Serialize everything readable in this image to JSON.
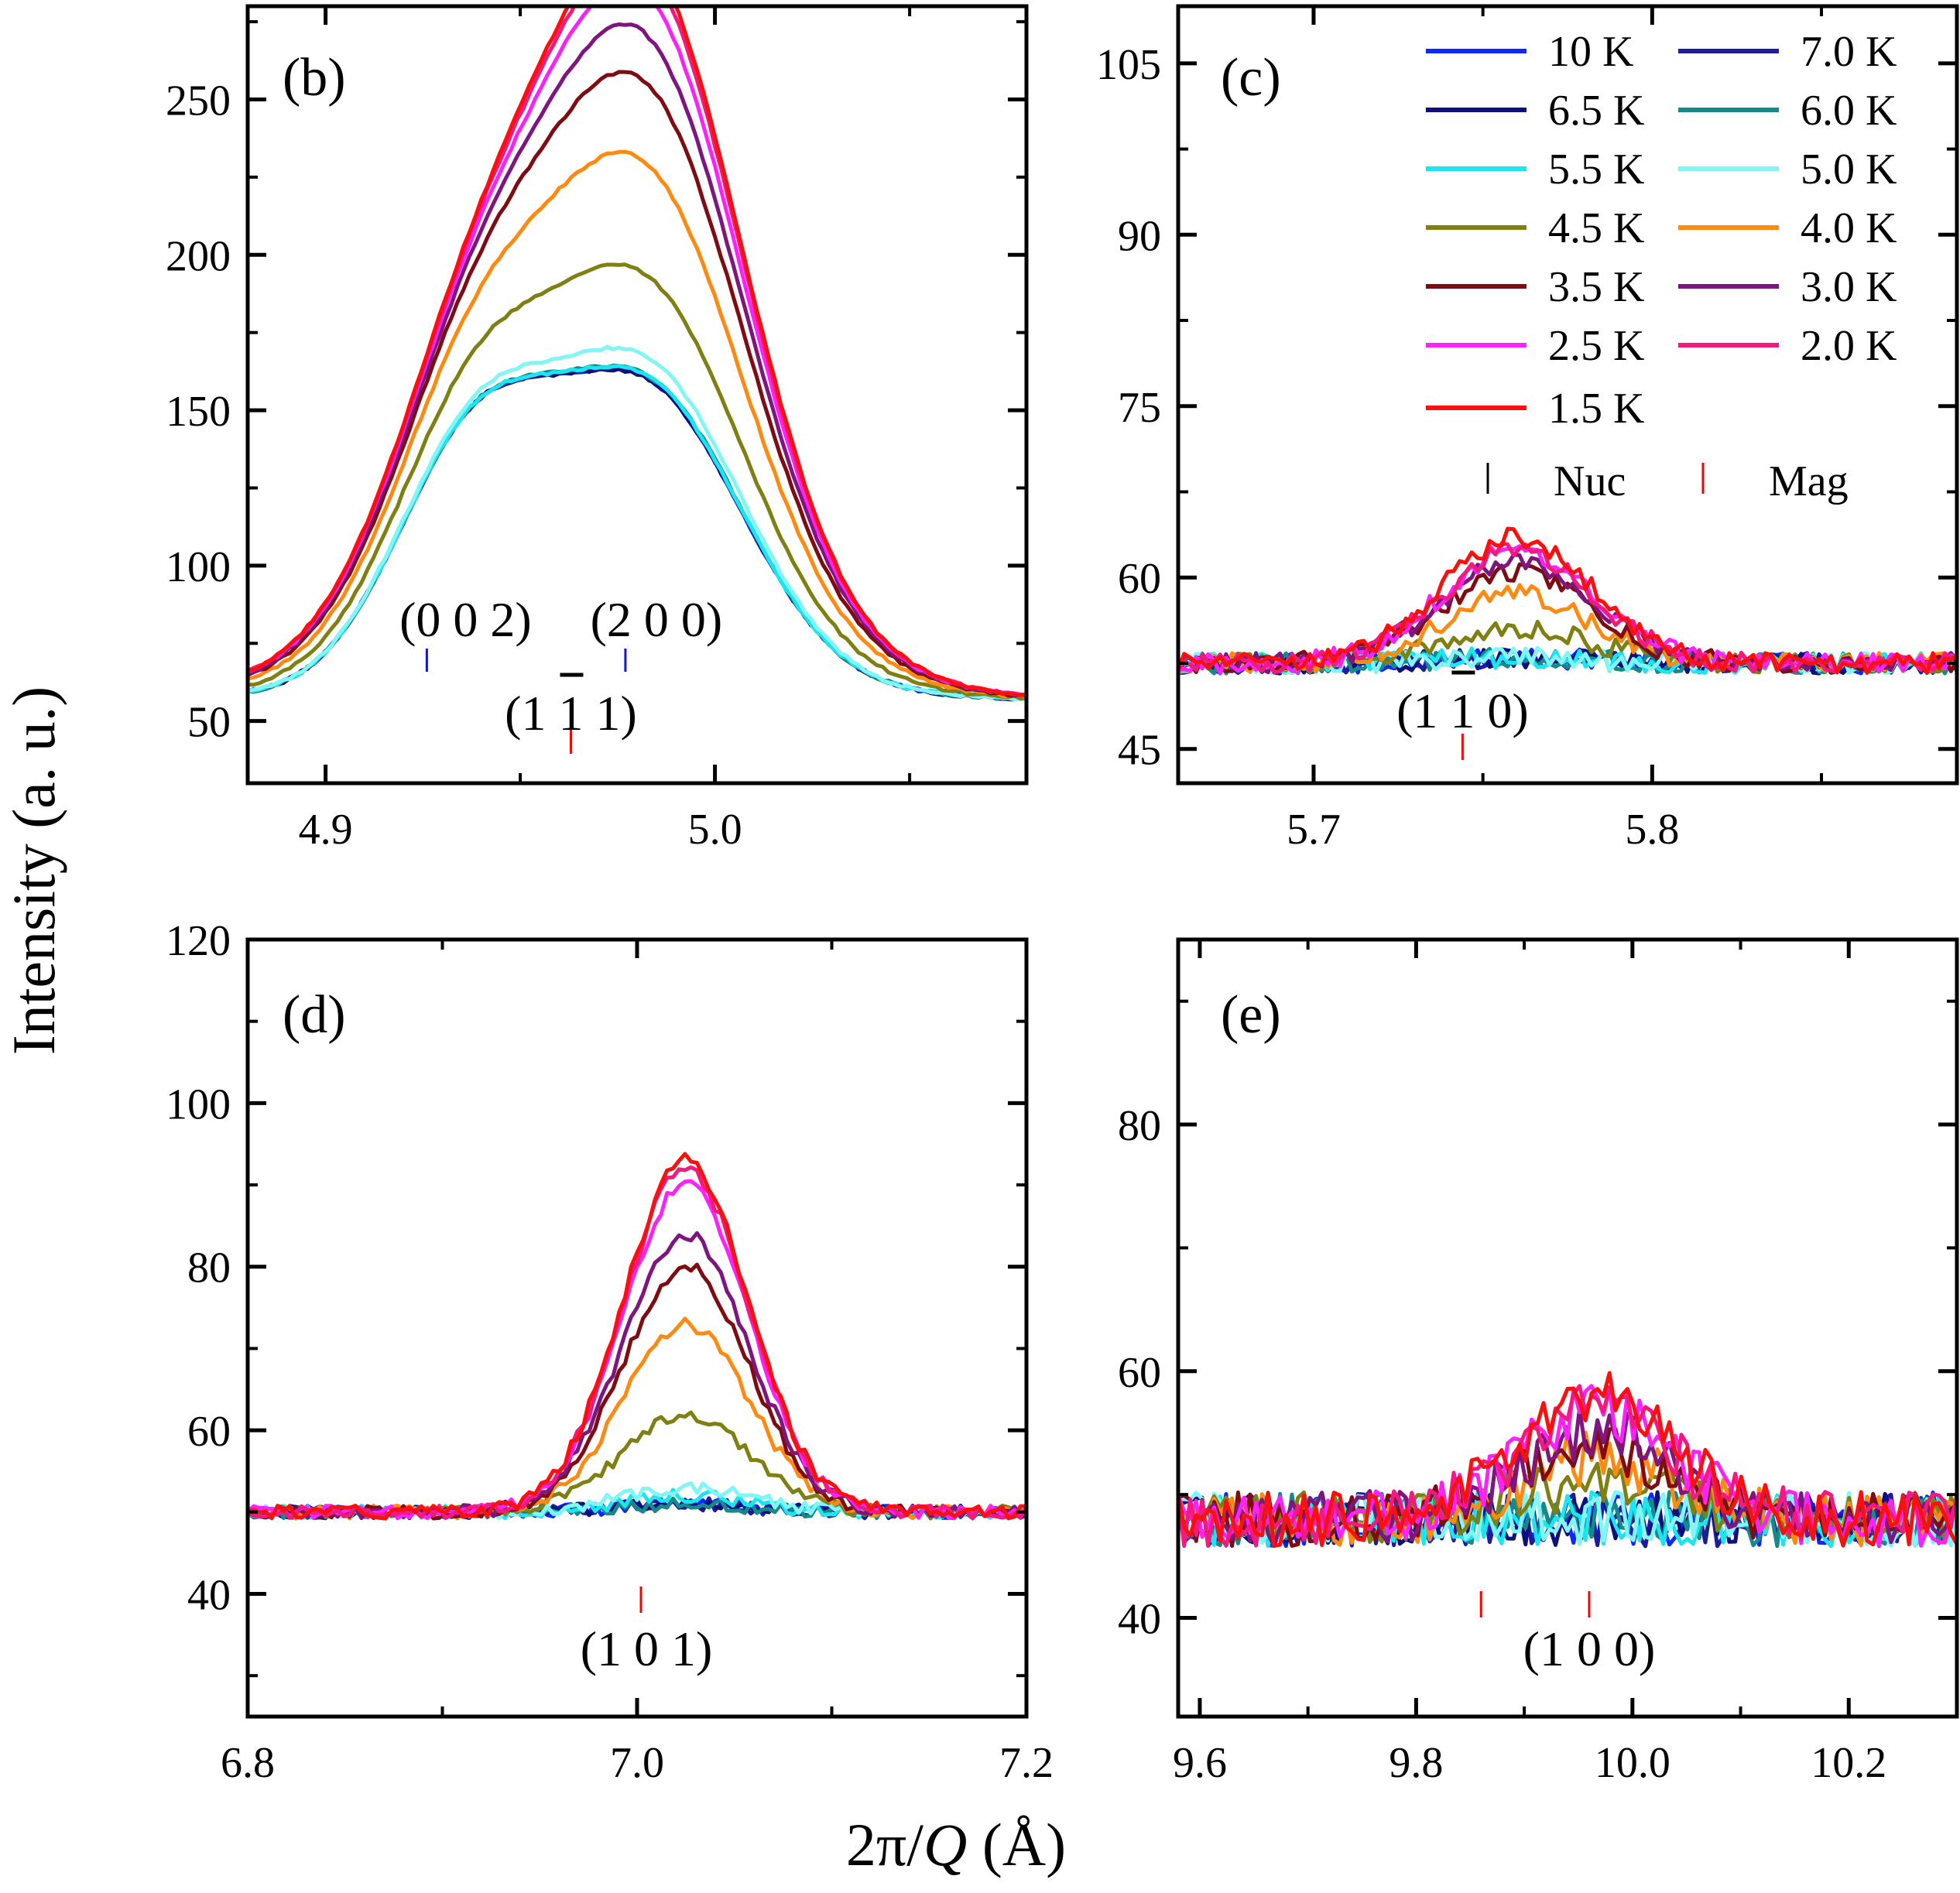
{
  "figure": {
    "ylabel": "Intensity (a. u.)",
    "xlabel_prefix": "2π/",
    "xlabel_italic": "Q",
    "xlabel_suffix": " (Å)"
  },
  "legend": {
    "entries": [
      {
        "label": "10 K",
        "color": "#0a28ff"
      },
      {
        "label": "7.0 K",
        "color": "#1c1c9c"
      },
      {
        "label": "6.5 K",
        "color": "#0d107a"
      },
      {
        "label": "6.0 K",
        "color": "#168a88"
      },
      {
        "label": "5.5 K",
        "color": "#19e6ef"
      },
      {
        "label": "5.0 K",
        "color": "#84f5f5"
      },
      {
        "label": "4.5 K",
        "color": "#7f8012"
      },
      {
        "label": "4.0 K",
        "color": "#ff8a12"
      },
      {
        "label": "3.5 K",
        "color": "#7e0c12"
      },
      {
        "label": "3.0 K",
        "color": "#7f157e"
      },
      {
        "label": "2.5 K",
        "color": "#fb22fb"
      },
      {
        "label": "2.0 K",
        "color": "#f21a7e"
      },
      {
        "label": "1.5 K",
        "color": "#fb1010"
      }
    ],
    "markers": [
      {
        "label": "Nuc",
        "color": "#000000"
      },
      {
        "label": "Mag",
        "color": "#ff0000"
      }
    ]
  },
  "chart_data": [
    {
      "panel": "(b)",
      "type": "line",
      "xlim": [
        4.88,
        5.08
      ],
      "ylim": [
        30,
        280
      ],
      "xticks": [
        4.9,
        5.0
      ],
      "xticks_minor": [
        4.95,
        5.05
      ],
      "yticks": [
        50,
        100,
        150,
        200,
        250
      ],
      "yticks_minor": [
        75,
        125,
        175,
        225,
        275
      ],
      "peaks": [
        {
          "center": 4.937,
          "width": 0.02
        },
        {
          "center": 4.982,
          "width": 0.025
        },
        {
          "center": 4.965,
          "width": 0.04
        }
      ],
      "baseline": 55,
      "noise": 0.5,
      "series": [
        {
          "name": "10 K",
          "amps": [
            72,
            95,
            0
          ]
        },
        {
          "name": "7.0 K",
          "amps": [
            72,
            95,
            0
          ]
        },
        {
          "name": "6.5 K",
          "amps": [
            72,
            95,
            0
          ]
        },
        {
          "name": "6.0 K",
          "amps": [
            72,
            96,
            0
          ]
        },
        {
          "name": "5.5 K",
          "amps": [
            72,
            96,
            0
          ]
        },
        {
          "name": "5.0 K",
          "amps": [
            73,
            102,
            0
          ]
        },
        {
          "name": "4.5 K",
          "amps": [
            70,
            110,
            20
          ]
        },
        {
          "name": "4.0 K",
          "amps": [
            68,
            130,
            38
          ]
        },
        {
          "name": "3.5 K",
          "amps": [
            66,
            145,
            50
          ]
        },
        {
          "name": "3.0 K",
          "amps": [
            65,
            155,
            56
          ]
        },
        {
          "name": "2.5 K",
          "amps": [
            64,
            165,
            60
          ]
        },
        {
          "name": "2.0 K",
          "amps": [
            64,
            172,
            62
          ]
        },
        {
          "name": "1.5 K",
          "amps": [
            64,
            175,
            63
          ]
        }
      ],
      "ticks_nuc": [
        {
          "x": 4.926,
          "label": "(0 0 2)"
        },
        {
          "x": 4.977,
          "label": "(2 0 0)"
        }
      ],
      "ticks_mag": [
        {
          "x": 4.963,
          "label": "(1 1 1)"
        }
      ]
    },
    {
      "panel": "(c)",
      "type": "line",
      "xlim": [
        5.66,
        5.89
      ],
      "ylim": [
        42,
        110
      ],
      "xticks": [
        5.7,
        5.8
      ],
      "xticks_minor": [
        5.75,
        5.85
      ],
      "yticks": [
        45,
        60,
        75,
        90,
        105
      ],
      "yticks_minor": [
        52.5,
        67.5,
        82.5,
        97.5
      ],
      "peaks": [
        {
          "center": 5.76,
          "width": 0.022
        }
      ],
      "baseline": 52.5,
      "noise": 0.9,
      "series": [
        {
          "name": "10 K",
          "amps": [
            0.5
          ]
        },
        {
          "name": "7.0 K",
          "amps": [
            0.5
          ]
        },
        {
          "name": "6.5 K",
          "amps": [
            0.5
          ]
        },
        {
          "name": "6.0 K",
          "amps": [
            0.5
          ]
        },
        {
          "name": "5.5 K",
          "amps": [
            0.5
          ]
        },
        {
          "name": "5.0 K",
          "amps": [
            0.5
          ]
        },
        {
          "name": "4.5 K",
          "amps": [
            3
          ]
        },
        {
          "name": "4.0 K",
          "amps": [
            6
          ]
        },
        {
          "name": "3.5 K",
          "amps": [
            8
          ]
        },
        {
          "name": "3.0 K",
          "amps": [
            9
          ]
        },
        {
          "name": "2.5 K",
          "amps": [
            10
          ]
        },
        {
          "name": "2.0 K",
          "amps": [
            10
          ]
        },
        {
          "name": "1.5 K",
          "amps": [
            11
          ]
        }
      ],
      "ticks_nuc": [],
      "ticks_mag": [
        {
          "x": 5.744,
          "label": "(1 1 0)"
        }
      ]
    },
    {
      "panel": "(d)",
      "type": "line",
      "xlim": [
        6.8,
        7.2
      ],
      "ylim": [
        25,
        120
      ],
      "xticks": [
        6.8,
        7.0,
        7.2
      ],
      "xticks_minor": [
        6.9,
        7.1
      ],
      "yticks": [
        40,
        60,
        80,
        100,
        120
      ],
      "yticks_minor": [
        30,
        50,
        70,
        90,
        110
      ],
      "peaks": [
        {
          "center": 7.025,
          "width": 0.032
        }
      ],
      "baseline": 50,
      "noise": 0.8,
      "series": [
        {
          "name": "10 K",
          "amps": [
            1
          ]
        },
        {
          "name": "7.0 K",
          "amps": [
            1
          ]
        },
        {
          "name": "6.5 K",
          "amps": [
            1
          ]
        },
        {
          "name": "6.0 K",
          "amps": [
            1
          ]
        },
        {
          "name": "5.5 K",
          "amps": [
            2
          ]
        },
        {
          "name": "5.0 K",
          "amps": [
            3
          ]
        },
        {
          "name": "4.5 K",
          "amps": [
            12
          ]
        },
        {
          "name": "4.0 K",
          "amps": [
            23
          ]
        },
        {
          "name": "3.5 K",
          "amps": [
            30
          ]
        },
        {
          "name": "3.0 K",
          "amps": [
            34
          ]
        },
        {
          "name": "2.5 K",
          "amps": [
            40
          ]
        },
        {
          "name": "2.0 K",
          "amps": [
            42
          ]
        },
        {
          "name": "1.5 K",
          "amps": [
            43
          ]
        }
      ],
      "ticks_nuc": [],
      "ticks_mag": [
        {
          "x": 7.002,
          "label": "(1 0 1)"
        }
      ]
    },
    {
      "panel": "(e)",
      "type": "line",
      "xlim": [
        9.58,
        10.3
      ],
      "ylim": [
        32,
        95
      ],
      "xticks": [
        9.6,
        9.8,
        10.0,
        10.2
      ],
      "xticks_minor": [
        9.7,
        9.9,
        10.1
      ],
      "yticks": [
        40,
        60,
        80
      ],
      "yticks_minor": [
        50,
        70,
        90
      ],
      "peaks": [
        {
          "center": 9.965,
          "width": 0.07
        }
      ],
      "baseline": 48,
      "noise": 2.2,
      "series": [
        {
          "name": "10 K",
          "amps": [
            0
          ]
        },
        {
          "name": "7.0 K",
          "amps": [
            0
          ]
        },
        {
          "name": "6.5 K",
          "amps": [
            0
          ]
        },
        {
          "name": "6.0 K",
          "amps": [
            0
          ]
        },
        {
          "name": "5.5 K",
          "amps": [
            0
          ]
        },
        {
          "name": "5.0 K",
          "amps": [
            0
          ]
        },
        {
          "name": "4.5 K",
          "amps": [
            3
          ]
        },
        {
          "name": "4.0 K",
          "amps": [
            5
          ]
        },
        {
          "name": "3.5 K",
          "amps": [
            6
          ]
        },
        {
          "name": "3.0 K",
          "amps": [
            7
          ]
        },
        {
          "name": "2.5 K",
          "amps": [
            9
          ]
        },
        {
          "name": "2.0 K",
          "amps": [
            9
          ]
        },
        {
          "name": "1.5 K",
          "amps": [
            10
          ]
        }
      ],
      "ticks_nuc": [],
      "ticks_mag": [
        {
          "x": 9.86,
          "label": ""
        },
        {
          "x": 9.96,
          "label": "(1 0 0)"
        }
      ]
    }
  ]
}
